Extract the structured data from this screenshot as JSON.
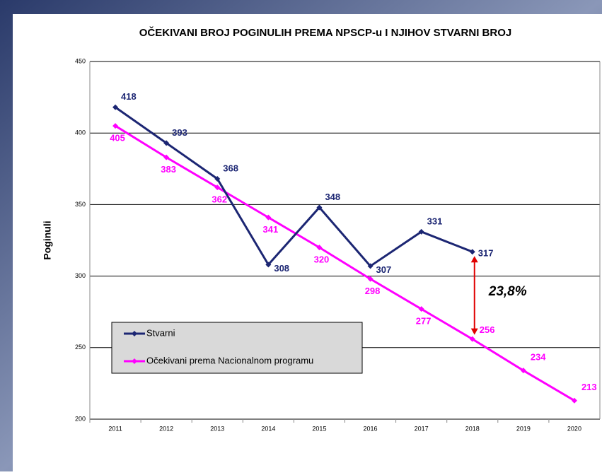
{
  "chart_data": {
    "type": "line",
    "title": "OČEKIVANI BROJ POGINULIH PREMA NPSCP-u I NJIHOV STVARNI BROJ",
    "y_label": "Poginuli",
    "categories": [
      "2011",
      "2012",
      "2013",
      "2014",
      "2015",
      "2016",
      "2017",
      "2018",
      "2019",
      "2020"
    ],
    "series": [
      {
        "name": "Stvarni",
        "color": "#1c2673",
        "values": [
          418,
          393,
          368,
          308,
          348,
          307,
          331,
          317,
          null,
          null
        ]
      },
      {
        "name": "Očekivani prema Nacionalnom programu",
        "color": "#ff00ff",
        "values": [
          405,
          383,
          362,
          341,
          320,
          298,
          277,
          256,
          234,
          213
        ]
      }
    ],
    "ylim": [
      200,
      450
    ],
    "yticks": [
      200,
      250,
      300,
      350,
      400,
      450
    ],
    "grid": true,
    "annotation": "23,8%"
  }
}
